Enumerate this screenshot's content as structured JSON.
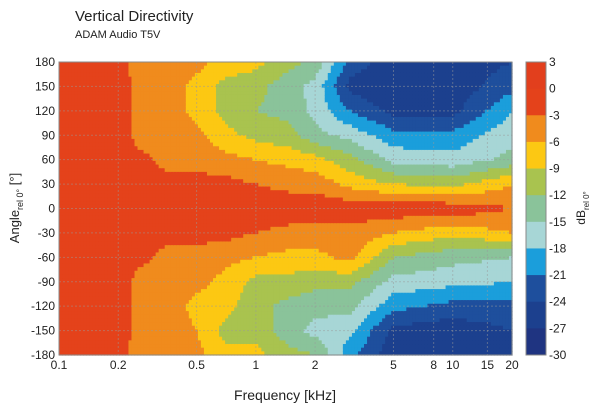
{
  "chart_data": {
    "type": "heatmap",
    "title": "Vertical Directivity",
    "subtitle": "ADAM Audio T5V",
    "xlabel": "Frequency [kHz]",
    "ylabel_main": "Angle",
    "ylabel_sub": "rel 0°",
    "ylabel_unit": " [°]",
    "xscale": "log",
    "xlim": [
      0.1,
      20
    ],
    "ylim": [
      -180,
      180
    ],
    "x_ticks": [
      0.1,
      0.2,
      0.5,
      1,
      2,
      5,
      8,
      10,
      15,
      20
    ],
    "x_tick_labels": [
      "0.1",
      "0.2",
      "0.5",
      "1",
      "2",
      "5",
      "8",
      "10",
      "15",
      "20"
    ],
    "y_ticks": [
      180,
      150,
      120,
      90,
      60,
      30,
      0,
      -30,
      -60,
      -90,
      -120,
      -150,
      -180
    ],
    "y_tick_labels": [
      "180",
      "150",
      "120",
      "90",
      "60",
      "30",
      "0",
      "-30",
      "-60",
      "-90",
      "-120",
      "-150",
      "-180"
    ],
    "grid": true,
    "colorbar": {
      "label_main": "dB",
      "label_sub": "rel 0°",
      "levels": [
        3,
        0,
        -3,
        -6,
        -9,
        -12,
        -15,
        -18,
        -21,
        -24,
        -27,
        -30
      ],
      "level_labels": [
        "3",
        "0",
        "-3",
        "-6",
        "-9",
        "-12",
        "-15",
        "-18",
        "-21",
        "-24",
        "-27",
        "-30"
      ],
      "colors": [
        "#e23f1d",
        "#e4421b",
        "#f08b1d",
        "#fcc813",
        "#a9c34f",
        "#8ac39a",
        "#a7d6d6",
        "#1b9edb",
        "#1e4f9d",
        "#1c408e",
        "#1f3481"
      ]
    },
    "frequencies_khz": [
      0.1,
      0.2,
      0.25,
      0.35,
      0.5,
      0.7,
      1,
      1.5,
      2,
      3,
      5,
      10,
      20
    ],
    "angles_deg": [
      180,
      150,
      120,
      90,
      60,
      30,
      0,
      -30,
      -60,
      -90,
      -120,
      -150,
      -180
    ],
    "level_db": [
      [
        -1,
        -1,
        -1,
        -1,
        -1,
        -1,
        -1,
        -1,
        -1,
        -1,
        -1,
        -1,
        -1
      ],
      [
        -2,
        -1,
        -1,
        -1,
        -1,
        -1,
        -1,
        -1,
        -1,
        -1,
        -1,
        -1,
        -2
      ],
      [
        -4,
        -4,
        -4,
        -4,
        -2,
        -1,
        -1,
        -1,
        -2,
        -4,
        -4,
        -4,
        -4
      ],
      [
        -4,
        -4,
        -4,
        -4,
        -4,
        -2,
        -1,
        -2,
        -4,
        -4,
        -4,
        -4,
        -4
      ],
      [
        -5,
        -7,
        -7,
        -5,
        -4,
        -2,
        -1,
        -2,
        -4,
        -5,
        -7,
        -6,
        -5
      ],
      [
        -7,
        -10,
        -10,
        -8,
        -5,
        -2,
        -1,
        -2,
        -5,
        -7,
        -8,
        -10,
        -8
      ],
      [
        -8,
        -11,
        -12,
        -10,
        -6,
        -3,
        -1,
        -3,
        -6,
        -10,
        -11,
        -10,
        -8
      ],
      [
        -11,
        -14,
        -13,
        -11,
        -7,
        -4,
        -1,
        -4,
        -7,
        -10,
        -13,
        -14,
        -11
      ],
      [
        -13,
        -16,
        -16,
        -14,
        -8,
        -4,
        -1,
        -4,
        -7,
        -11,
        -14,
        -16,
        -12
      ],
      [
        -22,
        -25,
        -21,
        -16,
        -11,
        -7,
        -1,
        -4,
        -5,
        -11,
        -14,
        -17,
        -20
      ],
      [
        -26,
        -27,
        -25,
        -20,
        -16,
        -9,
        -1,
        -6,
        -12,
        -16,
        -20,
        -25,
        -26
      ],
      [
        -26,
        -26,
        -25,
        -20,
        -17,
        -10,
        -1,
        -8,
        -14,
        -17,
        -22,
        -26,
        -27
      ],
      [
        -24,
        -22,
        -18,
        -16,
        -14,
        -6,
        -3,
        -6,
        -15,
        -18,
        -22,
        -24,
        -24
      ]
    ]
  }
}
